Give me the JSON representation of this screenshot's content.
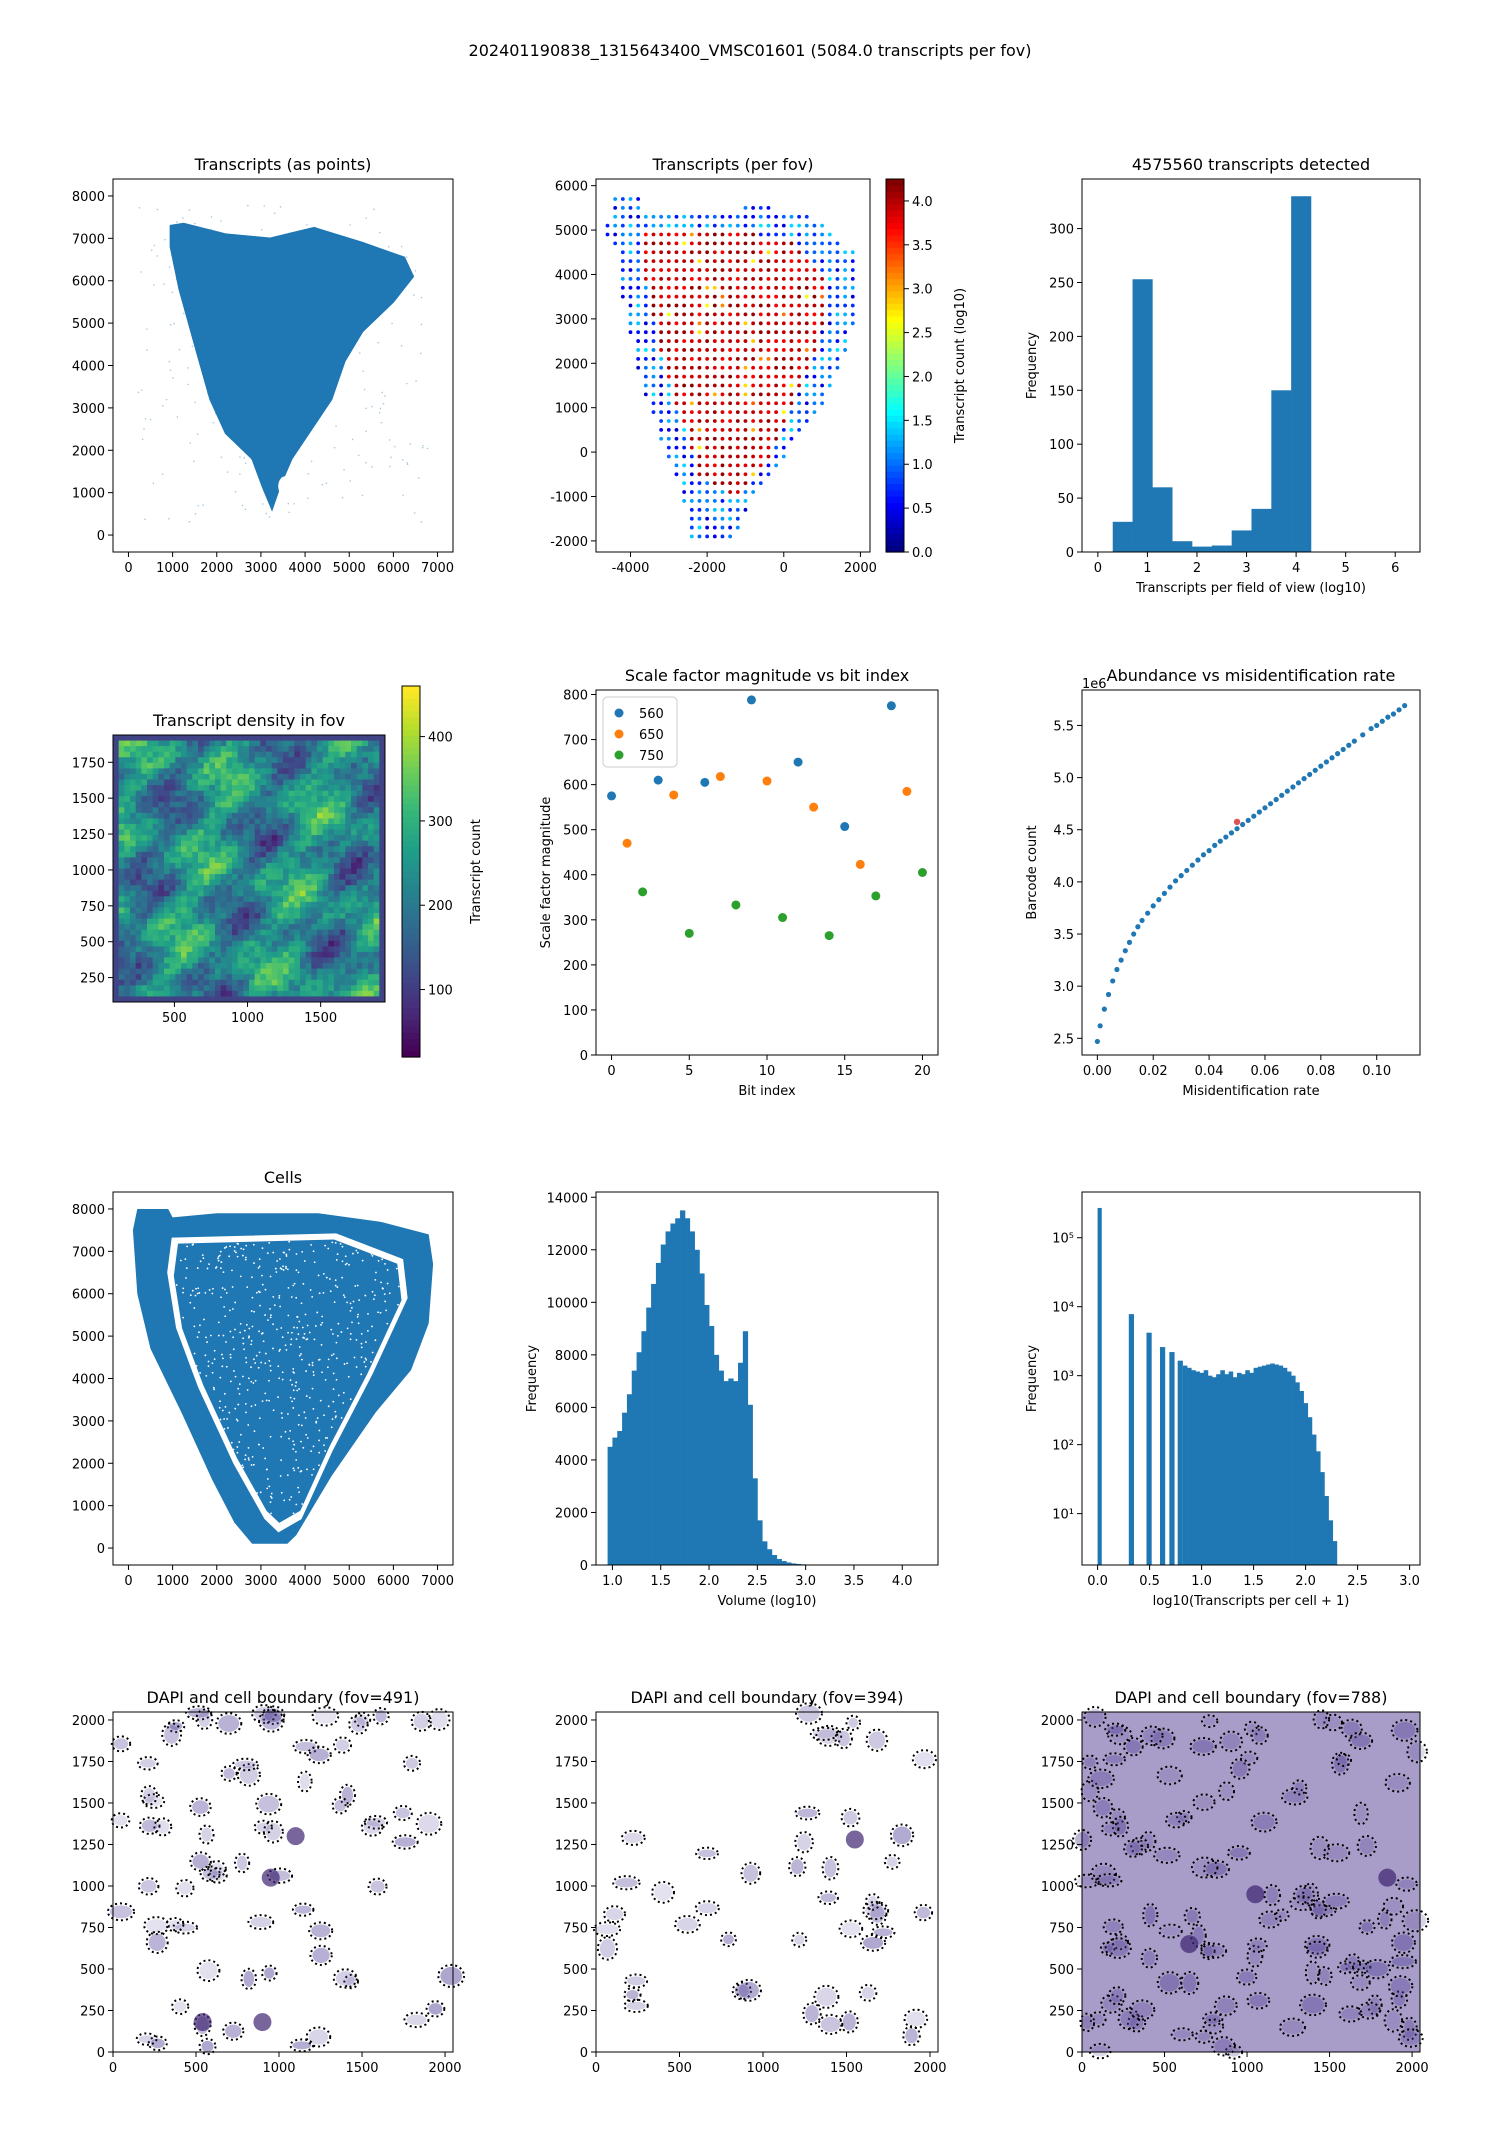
{
  "suptitle": "202401190838_1315643400_VMSC01601 (5084.0 transcripts per fov)",
  "colors": {
    "blue": "#1f77b4",
    "orange": "#ff7f0e",
    "green": "#2ca02c",
    "dapi": "#5b4a9c"
  },
  "chart_data": [
    {
      "id": "transcripts_points",
      "type": "scatter",
      "title": "Transcripts (as points)",
      "xlabel": "",
      "ylabel": "",
      "xlim": [
        -350,
        7350
      ],
      "ylim": [
        -400,
        8400
      ],
      "xticks": [
        0,
        1000,
        2000,
        3000,
        4000,
        5000,
        6000,
        7000
      ],
      "yticks": [
        0,
        1000,
        2000,
        3000,
        4000,
        5000,
        6000,
        7000,
        8000
      ],
      "outline": [
        [
          950,
          7300
        ],
        [
          1250,
          7350
        ],
        [
          2200,
          7100
        ],
        [
          3200,
          7000
        ],
        [
          4200,
          7250
        ],
        [
          5300,
          6900
        ],
        [
          6250,
          6550
        ],
        [
          6450,
          6100
        ],
        [
          6000,
          5500
        ],
        [
          5300,
          4800
        ],
        [
          4900,
          4100
        ],
        [
          4600,
          3200
        ],
        [
          3700,
          1800
        ],
        [
          3450,
          1200
        ],
        [
          3250,
          600
        ],
        [
          3050,
          1100
        ],
        [
          2800,
          1800
        ],
        [
          2200,
          2400
        ],
        [
          1850,
          3200
        ],
        [
          1550,
          4300
        ],
        [
          1150,
          5800
        ],
        [
          950,
          6800
        ]
      ]
    },
    {
      "id": "transcripts_per_fov",
      "type": "scatter",
      "title": "Transcripts (per fov)",
      "xlabel": "",
      "ylabel": "",
      "xlim": [
        -4900,
        2250
      ],
      "ylim": [
        -2250,
        6150
      ],
      "xticks": [
        -4000,
        -2000,
        0,
        2000
      ],
      "yticks": [
        -2000,
        -1000,
        0,
        1000,
        2000,
        3000,
        4000,
        5000,
        6000
      ],
      "colorbar": {
        "label": "Transcript count (log10)",
        "range": [
          0,
          4.25
        ],
        "ticks": [
          "0.0",
          "0.5",
          "1.0",
          "1.5",
          "2.0",
          "2.5",
          "3.0",
          "3.5",
          "4.0"
        ],
        "colormap": "jet"
      },
      "grid_step": 200,
      "outline": [
        [
          -4400,
          5800
        ],
        [
          -3800,
          5800
        ],
        [
          -3600,
          5500
        ],
        [
          -1100,
          5500
        ],
        [
          -900,
          5600
        ],
        [
          800,
          5300
        ],
        [
          1400,
          4800
        ],
        [
          1900,
          4500
        ],
        [
          1900,
          3300
        ],
        [
          1700,
          2400
        ],
        [
          1000,
          1000
        ],
        [
          -800,
          -1000
        ],
        [
          -1300,
          -1900
        ],
        [
          -2400,
          -1900
        ],
        [
          -2700,
          -800
        ],
        [
          -3200,
          200
        ],
        [
          -3800,
          1800
        ],
        [
          -4200,
          3500
        ],
        [
          -4300,
          4600
        ],
        [
          -4700,
          5000
        ]
      ],
      "inner": [
        [
          -3800,
          5000
        ],
        [
          -1800,
          5100
        ],
        [
          400,
          4700
        ],
        [
          1000,
          4000
        ],
        [
          1100,
          3000
        ],
        [
          600,
          1800
        ],
        [
          -300,
          0
        ],
        [
          -1200,
          -1000
        ],
        [
          -2200,
          -500
        ],
        [
          -2700,
          800
        ],
        [
          -3200,
          2300
        ],
        [
          -3600,
          3800
        ]
      ]
    },
    {
      "id": "fov_histogram",
      "type": "bar",
      "title": "4575560 transcripts detected",
      "xlabel": "Transcripts per field of view (log10)",
      "ylabel": "Frequency",
      "xlim": [
        -0.32,
        6.5
      ],
      "ylim": [
        0,
        346
      ],
      "xticks": [
        0,
        1,
        2,
        3,
        4,
        5,
        6
      ],
      "yticks": [
        0,
        50,
        100,
        150,
        200,
        250,
        300
      ],
      "bin_edges": [
        0.3,
        0.7,
        1.1,
        1.5,
        1.9,
        2.3,
        2.7,
        3.1,
        3.5,
        3.9,
        4.3
      ],
      "values": [
        28,
        253,
        60,
        10,
        5,
        6,
        20,
        40,
        150,
        330
      ]
    },
    {
      "id": "transcript_density",
      "type": "heatmap",
      "title": "Transcript density in fov",
      "xlim": [
        80,
        1940
      ],
      "ylim": [
        80,
        1940
      ],
      "xticks": [
        500,
        1000,
        1500
      ],
      "yticks": [
        250,
        500,
        750,
        1000,
        1250,
        1500,
        1750
      ],
      "colorbar": {
        "label": "Transcript count",
        "range": [
          20,
          460
        ],
        "ticks": [
          "100",
          "200",
          "300",
          "400"
        ],
        "colormap": "viridis"
      }
    },
    {
      "id": "scale_factor",
      "type": "scatter",
      "title": "Scale factor magnitude vs bit index",
      "xlabel": "Bit index",
      "ylabel": "Scale factor magnitude",
      "xlim": [
        -1,
        21
      ],
      "ylim": [
        0,
        810
      ],
      "xticks": [
        0,
        5,
        10,
        15,
        20
      ],
      "yticks": [
        0,
        100,
        200,
        300,
        400,
        500,
        600,
        700,
        800
      ],
      "legend_position": "top-left",
      "series": [
        {
          "name": "560",
          "color": "#1f77b4",
          "x": [
            0,
            3,
            6,
            9,
            12,
            15,
            18
          ],
          "y": [
            575,
            610,
            605,
            788,
            650,
            507,
            775
          ]
        },
        {
          "name": "650",
          "color": "#ff7f0e",
          "x": [
            1,
            4,
            7,
            10,
            13,
            16,
            19
          ],
          "y": [
            470,
            577,
            618,
            608,
            550,
            423,
            585
          ]
        },
        {
          "name": "750",
          "color": "#2ca02c",
          "x": [
            2,
            5,
            8,
            11,
            14,
            17,
            20
          ],
          "y": [
            362,
            270,
            333,
            305,
            265,
            353,
            405
          ]
        }
      ]
    },
    {
      "id": "abundance_misid",
      "type": "scatter",
      "title": "Abundance vs misidentification rate",
      "xlabel": "Misidentification rate",
      "ylabel": "Barcode count",
      "offset_text": "1e6",
      "xlim": [
        -0.0055,
        0.1155
      ],
      "ylim": [
        2.34,
        5.84
      ],
      "xticks": [
        "0.00",
        "0.02",
        "0.04",
        "0.06",
        "0.08",
        "0.10"
      ],
      "yticks": [
        "2.5",
        "3.0",
        "3.5",
        "4.0",
        "4.5",
        "5.0",
        "5.5"
      ],
      "highlight": {
        "x": 0.05,
        "y": 4.575
      },
      "x": [
        0.0,
        0.001,
        0.0025,
        0.004,
        0.0055,
        0.007,
        0.0085,
        0.01,
        0.0115,
        0.013,
        0.0145,
        0.016,
        0.018,
        0.02,
        0.022,
        0.024,
        0.026,
        0.028,
        0.03,
        0.032,
        0.034,
        0.036,
        0.038,
        0.04,
        0.042,
        0.044,
        0.046,
        0.048,
        0.05,
        0.052,
        0.054,
        0.056,
        0.058,
        0.06,
        0.062,
        0.064,
        0.066,
        0.068,
        0.07,
        0.072,
        0.074,
        0.076,
        0.078,
        0.08,
        0.082,
        0.084,
        0.086,
        0.088,
        0.09,
        0.092,
        0.095,
        0.098,
        0.1,
        0.102,
        0.104,
        0.106,
        0.108,
        0.11
      ],
      "y": [
        2.47,
        2.62,
        2.78,
        2.92,
        3.05,
        3.16,
        3.25,
        3.34,
        3.42,
        3.5,
        3.57,
        3.63,
        3.7,
        3.77,
        3.83,
        3.89,
        3.95,
        4.01,
        4.06,
        4.11,
        4.16,
        4.21,
        4.26,
        4.3,
        4.35,
        4.39,
        4.43,
        4.47,
        4.51,
        4.55,
        4.59,
        4.63,
        4.67,
        4.71,
        4.75,
        4.79,
        4.83,
        4.87,
        4.91,
        4.95,
        4.99,
        5.03,
        5.07,
        5.11,
        5.15,
        5.19,
        5.23,
        5.27,
        5.31,
        5.35,
        5.41,
        5.47,
        5.5,
        5.54,
        5.58,
        5.61,
        5.65,
        5.69
      ]
    },
    {
      "id": "cells",
      "type": "scatter",
      "title": "Cells",
      "xlabel": "",
      "ylabel": "",
      "xlim": [
        -350,
        7350
      ],
      "ylim": [
        -400,
        8400
      ],
      "xticks": [
        0,
        1000,
        2000,
        3000,
        4000,
        5000,
        6000,
        7000
      ],
      "yticks": [
        0,
        1000,
        2000,
        3000,
        4000,
        5000,
        6000,
        7000,
        8000
      ],
      "outer": [
        [
          100,
          7500
        ],
        [
          200,
          8000
        ],
        [
          900,
          8000
        ],
        [
          1000,
          7800
        ],
        [
          2000,
          7900
        ],
        [
          4300,
          7900
        ],
        [
          5700,
          7700
        ],
        [
          6800,
          7400
        ],
        [
          6900,
          6700
        ],
        [
          6800,
          5300
        ],
        [
          6400,
          4200
        ],
        [
          5600,
          3200
        ],
        [
          4600,
          1700
        ],
        [
          3800,
          300
        ],
        [
          3600,
          100
        ],
        [
          2800,
          100
        ],
        [
          2400,
          600
        ],
        [
          1900,
          1600
        ],
        [
          1200,
          3200
        ],
        [
          500,
          4700
        ],
        [
          200,
          6000
        ]
      ],
      "inner": [
        [
          1000,
          7300
        ],
        [
          4700,
          7400
        ],
        [
          6200,
          6800
        ],
        [
          6300,
          5900
        ],
        [
          5500,
          4100
        ],
        [
          4600,
          2300
        ],
        [
          3900,
          700
        ],
        [
          3400,
          400
        ],
        [
          3100,
          700
        ],
        [
          2400,
          2000
        ],
        [
          1600,
          3800
        ],
        [
          1100,
          5200
        ],
        [
          900,
          6500
        ]
      ]
    },
    {
      "id": "volume_hist",
      "type": "bar",
      "title": "",
      "xlabel": "Volume (log10)",
      "ylabel": "Frequency",
      "xlim": [
        0.83,
        4.37
      ],
      "ylim": [
        0,
        14200
      ],
      "xticks": [
        "1.0",
        "1.5",
        "2.0",
        "2.5",
        "3.0",
        "3.5",
        "4.0"
      ],
      "yticks": [
        0,
        2000,
        4000,
        6000,
        8000,
        10000,
        12000,
        14000
      ],
      "bin_start": 0.95,
      "bin_width": 0.05,
      "values": [
        4500,
        4850,
        5100,
        5800,
        6500,
        7400,
        8100,
        8900,
        9800,
        10700,
        11500,
        12200,
        12700,
        13000,
        13200,
        13500,
        13200,
        12700,
        12000,
        11100,
        9900,
        9100,
        8000,
        7400,
        7000,
        7100,
        7000,
        7700,
        8900,
        6100,
        3300,
        1700,
        900,
        600,
        380,
        230,
        150,
        95,
        60,
        40,
        25,
        15,
        10,
        6,
        4,
        3
      ]
    },
    {
      "id": "transcripts_per_cell",
      "type": "bar",
      "title": "",
      "xlabel": "log10(Transcripts per cell + 1)",
      "ylabel": "Frequency",
      "log_y": true,
      "xlim": [
        -0.15,
        3.1
      ],
      "ylim": [
        1.8,
        460000
      ],
      "xticks": [
        "0.0",
        "0.5",
        "1.0",
        "1.5",
        "2.0",
        "2.5",
        "3.0"
      ],
      "yticks": [
        "10¹",
        "10²",
        "10³",
        "10⁴",
        "10⁵"
      ],
      "bars": [
        {
          "x0": 0.0,
          "x1": 0.04,
          "v": 270000
        },
        {
          "x0": 0.3,
          "x1": 0.35,
          "v": 7800
        },
        {
          "x0": 0.47,
          "x1": 0.52,
          "v": 4200
        },
        {
          "x0": 0.6,
          "x1": 0.65,
          "v": 2600
        },
        {
          "x0": 0.69,
          "x1": 0.74,
          "v": 2200
        },
        {
          "x0": 0.77,
          "x1": 0.82,
          "v": 1650
        }
      ],
      "dense_start": 0.82,
      "dense_width": 0.04,
      "dense_values": [
        1400,
        1300,
        1200,
        1150,
        1100,
        1200,
        1000,
        950,
        1050,
        1200,
        1050,
        1150,
        950,
        1100,
        1050,
        1200,
        1100,
        1300,
        1350,
        1400,
        1450,
        1500,
        1450,
        1400,
        1300,
        1150,
        1000,
        800,
        600,
        400,
        250,
        140,
        80,
        40,
        18,
        8,
        4
      ]
    },
    {
      "id": "dapi_491",
      "type": "image",
      "title": "DAPI and cell boundary (fov=491)",
      "xlim": [
        0,
        2048
      ],
      "ylim": [
        0,
        2048
      ],
      "xticks": [
        0,
        500,
        1000,
        1500,
        2000
      ],
      "yticks": [
        0,
        250,
        500,
        750,
        1000,
        1250,
        1500,
        1750,
        2000
      ]
    },
    {
      "id": "dapi_394",
      "type": "image",
      "title": "DAPI and cell boundary (fov=394)",
      "xlim": [
        0,
        2048
      ],
      "ylim": [
        0,
        2048
      ],
      "xticks": [
        0,
        500,
        1000,
        1500,
        2000
      ],
      "yticks": [
        0,
        250,
        500,
        750,
        1000,
        1250,
        1500,
        1750,
        2000
      ]
    },
    {
      "id": "dapi_788",
      "type": "image",
      "title": "DAPI and cell boundary (fov=788)",
      "xlim": [
        0,
        2048
      ],
      "ylim": [
        0,
        2048
      ],
      "xticks": [
        0,
        500,
        1000,
        1500,
        2000
      ],
      "yticks": [
        0,
        250,
        500,
        750,
        1000,
        1250,
        1500,
        1750,
        2000
      ]
    }
  ]
}
